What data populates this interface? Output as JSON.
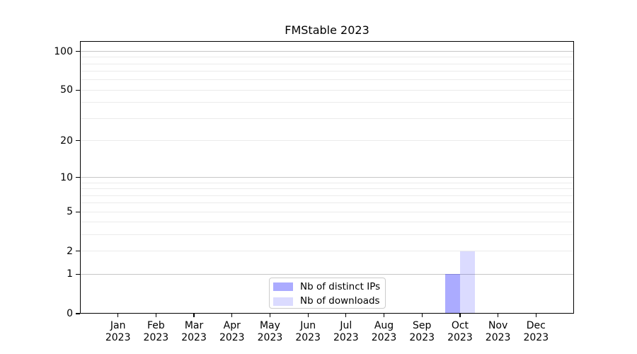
{
  "chart_data": {
    "type": "bar",
    "title": "FMStable 2023",
    "categories": [
      "Jan",
      "Feb",
      "Mar",
      "Apr",
      "May",
      "Jun",
      "Jul",
      "Aug",
      "Sep",
      "Oct",
      "Nov",
      "Dec"
    ],
    "year": "2023",
    "series": [
      {
        "name": "Nb of distinct IPs",
        "color": "rgba(0,0,255,0.33)",
        "values": [
          0,
          0,
          0,
          0,
          0,
          0,
          0,
          0,
          0,
          1,
          0,
          0
        ]
      },
      {
        "name": "Nb of downloads",
        "color": "rgba(0,0,255,0.14)",
        "values": [
          0,
          0,
          0,
          0,
          0,
          0,
          0,
          0,
          0,
          2,
          0,
          0
        ]
      }
    ],
    "yscale": "log1p",
    "ylim": [
      0,
      120
    ],
    "ytick_labels": [
      "0",
      "1",
      "2",
      "5",
      "10",
      "20",
      "50",
      "100"
    ],
    "ytick_values": [
      0,
      1,
      2,
      5,
      10,
      20,
      50,
      100
    ],
    "major_grid_values": [
      1,
      10,
      100
    ],
    "minor_grid_values": [
      2,
      3,
      4,
      5,
      6,
      7,
      8,
      9,
      20,
      30,
      40,
      50,
      60,
      70,
      80,
      90
    ],
    "grid": "horizontal",
    "legend_position": "lower center",
    "xlabel": "",
    "ylabel": ""
  },
  "colors": {
    "major_grid": "#c6c6c6",
    "minor_grid": "#ebebeb",
    "spine": "#000000",
    "background": "#ffffff",
    "legend_border": "#cccccc"
  }
}
